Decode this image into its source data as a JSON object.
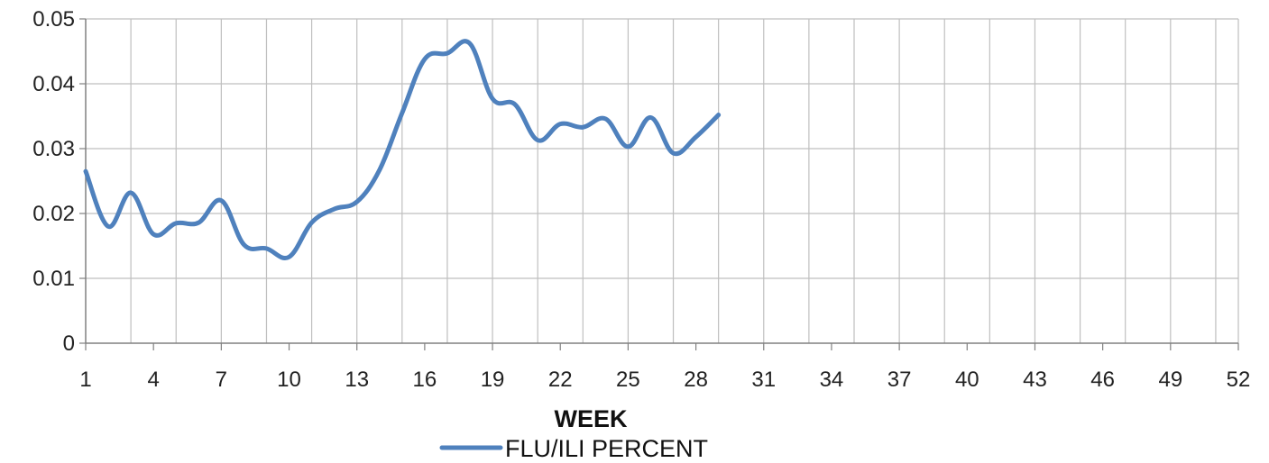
{
  "chart_data": {
    "type": "line",
    "title": "",
    "xlabel": "WEEK",
    "ylabel": "",
    "xlim": [
      1,
      52
    ],
    "ylim": [
      0,
      0.05
    ],
    "x_ticks": [
      "1",
      "4",
      "7",
      "10",
      "13",
      "16",
      "19",
      "22",
      "25",
      "28",
      "31",
      "34",
      "37",
      "40",
      "43",
      "46",
      "49",
      "52"
    ],
    "y_ticks": [
      "0",
      "0.01",
      "0.02",
      "0.03",
      "0.04",
      "0.05"
    ],
    "grid": true,
    "legend_position": "bottom",
    "series": [
      {
        "name": "FLU/ILI PERCENT",
        "color": "#4F81BD",
        "x": [
          1,
          2,
          3,
          4,
          5,
          6,
          7,
          8,
          9,
          10,
          11,
          12,
          13,
          14,
          15,
          16,
          17,
          18,
          19,
          20,
          21,
          22,
          23,
          24,
          25,
          26,
          27,
          28,
          29
        ],
        "values": [
          0.0265,
          0.018,
          0.0232,
          0.0168,
          0.0185,
          0.0186,
          0.022,
          0.0152,
          0.0146,
          0.0133,
          0.0186,
          0.0207,
          0.0218,
          0.0267,
          0.0355,
          0.0438,
          0.0447,
          0.0462,
          0.0377,
          0.0368,
          0.0313,
          0.0338,
          0.0333,
          0.0346,
          0.0303,
          0.0348,
          0.0293,
          0.0318,
          0.0352
        ]
      }
    ]
  }
}
